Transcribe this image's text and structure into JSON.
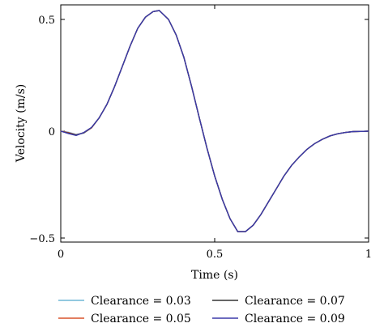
{
  "chart_data": {
    "type": "line",
    "xlabel": "Time (s)",
    "ylabel": "Velocity (m/s)",
    "xlim": [
      0,
      1
    ],
    "ylim": [
      -0.5,
      0.5
    ],
    "x_ticks": [
      0,
      0.5,
      1
    ],
    "x_tick_labels": [
      "0",
      "0.5",
      "1"
    ],
    "y_ticks": [
      -0.5,
      0,
      0.5
    ],
    "y_tick_labels": [
      "−0.5",
      "0",
      "0.5"
    ],
    "grid": false,
    "legend_position": "below",
    "x": [
      0,
      0.025,
      0.05,
      0.075,
      0.1,
      0.125,
      0.15,
      0.175,
      0.2,
      0.225,
      0.25,
      0.275,
      0.3,
      0.32,
      0.35,
      0.375,
      0.4,
      0.425,
      0.45,
      0.475,
      0.5,
      0.525,
      0.55,
      0.575,
      0.6,
      0.625,
      0.65,
      0.675,
      0.7,
      0.725,
      0.75,
      0.775,
      0.8,
      0.825,
      0.85,
      0.875,
      0.9,
      0.925,
      0.95,
      0.975,
      1
    ],
    "series": [
      {
        "name": "Clearance = 0.03",
        "color": "#6fb7d6",
        "values": [
          0,
          -0.005,
          -0.015,
          -0.01,
          0.015,
          0.06,
          0.12,
          0.2,
          0.29,
          0.38,
          0.46,
          0.51,
          0.535,
          0.54,
          0.5,
          0.43,
          0.33,
          0.2,
          0.06,
          -0.08,
          -0.21,
          -0.32,
          -0.41,
          -0.47,
          -0.47,
          -0.44,
          -0.39,
          -0.33,
          -0.27,
          -0.21,
          -0.16,
          -0.12,
          -0.085,
          -0.058,
          -0.038,
          -0.022,
          -0.012,
          -0.006,
          -0.002,
          -0.001,
          0
        ]
      },
      {
        "name": "Clearance = 0.05",
        "color": "#d9532b",
        "values": [
          0,
          -0.007,
          -0.017,
          -0.008,
          0.015,
          0.06,
          0.12,
          0.2,
          0.29,
          0.38,
          0.46,
          0.51,
          0.535,
          0.54,
          0.5,
          0.43,
          0.33,
          0.2,
          0.06,
          -0.08,
          -0.21,
          -0.32,
          -0.41,
          -0.47,
          -0.47,
          -0.44,
          -0.39,
          -0.33,
          -0.27,
          -0.21,
          -0.16,
          -0.12,
          -0.085,
          -0.058,
          -0.038,
          -0.022,
          -0.012,
          -0.006,
          -0.002,
          -0.001,
          0
        ]
      },
      {
        "name": "Clearance = 0.07",
        "color": "#333333",
        "values": [
          0,
          -0.009,
          -0.018,
          -0.007,
          0.016,
          0.06,
          0.12,
          0.2,
          0.29,
          0.38,
          0.46,
          0.51,
          0.535,
          0.54,
          0.5,
          0.43,
          0.33,
          0.2,
          0.06,
          -0.08,
          -0.21,
          -0.32,
          -0.41,
          -0.47,
          -0.47,
          -0.44,
          -0.39,
          -0.33,
          -0.27,
          -0.21,
          -0.16,
          -0.12,
          -0.085,
          -0.058,
          -0.038,
          -0.022,
          -0.012,
          -0.006,
          -0.002,
          -0.001,
          0
        ]
      },
      {
        "name": "Clearance = 0.09",
        "color": "#3b3aa8",
        "values": [
          0,
          -0.011,
          -0.02,
          -0.006,
          0.017,
          0.06,
          0.12,
          0.2,
          0.29,
          0.38,
          0.46,
          0.51,
          0.535,
          0.54,
          0.5,
          0.43,
          0.33,
          0.2,
          0.06,
          -0.08,
          -0.21,
          -0.32,
          -0.41,
          -0.47,
          -0.47,
          -0.44,
          -0.39,
          -0.33,
          -0.27,
          -0.21,
          -0.16,
          -0.12,
          -0.085,
          -0.058,
          -0.038,
          -0.022,
          -0.012,
          -0.006,
          -0.002,
          -0.001,
          0
        ]
      }
    ]
  }
}
